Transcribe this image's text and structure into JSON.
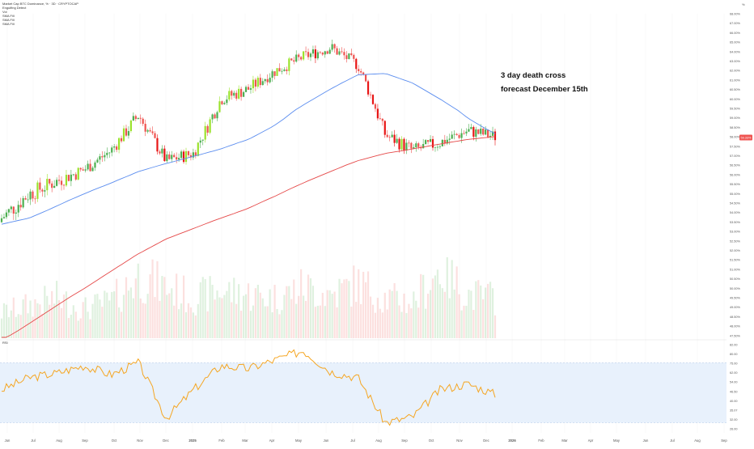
{
  "header": {
    "title": "Market Cap BTC Dominance, % · 3D · CRYPTOCAP",
    "indicators": [
      "Engulfing Detect",
      "Vol",
      "SMA Fill",
      "SMA Fill",
      "SMA Fill"
    ],
    "currency_label": "%"
  },
  "annotations": {
    "line1": "3 day death cross",
    "line2": "forecast December 15th"
  },
  "rsi_panel": {
    "label": "RSI"
  },
  "colors": {
    "bull": "#4caf50",
    "bull_bright": "#9be22d",
    "bear": "#ef5350",
    "bear_bright": "#e81515",
    "sma_fast": "#5b8def",
    "sma_slow": "#e54848",
    "rsi_line": "#f5a623",
    "rsi_band": "#e8f1fc",
    "grid": "#f2f2f2"
  },
  "chart_data": [
    {
      "type": "line",
      "title": "Market Cap BTC Dominance, % · 3D · CRYPTOCAP",
      "y_ticks": [
        "68.00%",
        "67.00%",
        "66.00%",
        "65.00%",
        "64.00%",
        "63.00%",
        "62.00%",
        "61.00%",
        "60.50%",
        "60.00%",
        "59.50%",
        "59.00%",
        "58.50%",
        "58.00%",
        "57.50%",
        "57.00%",
        "56.50%",
        "56.00%",
        "55.50%",
        "55.00%",
        "54.50%",
        "54.00%",
        "53.50%",
        "53.00%",
        "52.50%",
        "52.00%",
        "51.50%",
        "51.00%",
        "50.50%",
        "50.00%",
        "49.50%",
        "49.00%",
        "48.50%",
        "48.00%",
        "47.50%"
      ],
      "x_labels": [
        "Jun",
        "Jul",
        "Aug",
        "Sep",
        "Oct",
        "Nov",
        "Dec",
        "2025",
        "Feb",
        "Mar",
        "Apr",
        "May",
        "Jun",
        "Jul",
        "Aug",
        "Sep",
        "Oct",
        "Nov",
        "Dec",
        "2026",
        "Feb",
        "Mar",
        "Apr",
        "May",
        "Jun",
        "Jul",
        "Aug",
        "Sep"
      ],
      "last_price_label": "59.33%",
      "series": [
        {
          "kind": "candles",
          "x": [
            "Jun",
            "Jul",
            "Aug",
            "Sep",
            "Oct",
            "Nov",
            "Dec",
            "2025",
            "Feb",
            "Mar",
            "Apr",
            "May",
            "Jun",
            "Jul",
            "Aug",
            "Sep",
            "Oct",
            "Nov",
            "Dec"
          ],
          "close": [
            54.6,
            55.8,
            56.5,
            57.2,
            58.5,
            60.8,
            57.8,
            58.3,
            61.8,
            62.5,
            63.8,
            64.8,
            65.5,
            64.2,
            59.5,
            58.5,
            59.0,
            59.8,
            59.4
          ]
        },
        {
          "kind": "line",
          "x": [
            "Jun",
            "Jul",
            "Aug",
            "Sep",
            "Oct",
            "Nov",
            "Dec",
            "2025",
            "Feb",
            "Mar",
            "Apr",
            "May",
            "Jun",
            "Jul",
            "Aug",
            "Sep",
            "Oct",
            "Nov",
            "Dec"
          ],
          "values": [
            54.3,
            54.6,
            55.2,
            55.8,
            56.4,
            57.1,
            57.6,
            58.1,
            58.6,
            59.2,
            60.2,
            61.4,
            62.5,
            63.5,
            63.6,
            62.9,
            61.8,
            60.6,
            59.6
          ]
        },
        {
          "kind": "line",
          "x": [
            "Jun",
            "Jul",
            "Aug",
            "Sep",
            "Oct",
            "Nov",
            "Dec",
            "2025",
            "Feb",
            "Mar",
            "Apr",
            "May",
            "Jun",
            "Jul",
            "Aug",
            "Sep",
            "Oct",
            "Nov",
            "Dec"
          ],
          "values": [
            47.8,
            48.9,
            50.0,
            51.0,
            52.0,
            52.9,
            53.6,
            54.1,
            54.6,
            55.1,
            55.7,
            56.4,
            57.1,
            57.8,
            58.3,
            58.6,
            58.9,
            59.2,
            59.4
          ]
        }
      ]
    },
    {
      "type": "bar",
      "x": [
        "Jun",
        "Jul",
        "Aug",
        "Sep",
        "Oct",
        "Nov",
        "Dec",
        "2025",
        "Feb",
        "Mar",
        "Apr",
        "May",
        "Jun",
        "Jul",
        "Aug",
        "Sep",
        "Oct",
        "Nov",
        "Dec"
      ],
      "values": [
        0.35,
        0.45,
        0.55,
        0.4,
        0.5,
        0.85,
        0.7,
        0.55,
        0.65,
        0.6,
        0.55,
        0.7,
        0.6,
        0.75,
        0.55,
        0.5,
        0.95,
        0.6,
        0.55
      ]
    },
    {
      "type": "line",
      "title": "RSI",
      "y_ticks": [
        "82.00",
        "80.00",
        "75.00",
        "62.00",
        "54.00",
        "46.50",
        "40.00",
        "35.07",
        "32.00",
        "26.00"
      ],
      "band": [
        30,
        70
      ],
      "series": [
        {
          "x": [
            "Jun",
            "Jul",
            "Aug",
            "Sep",
            "Oct",
            "Nov",
            "Dec",
            "2025",
            "Feb",
            "Mar",
            "Apr",
            "May",
            "Jun",
            "Jul",
            "Aug",
            "Sep",
            "Oct",
            "Nov",
            "Dec"
          ],
          "values": [
            52,
            60,
            63,
            68,
            62,
            70,
            33,
            52,
            68,
            66,
            72,
            78,
            64,
            60,
            30,
            34,
            52,
            56,
            49
          ]
        }
      ]
    }
  ]
}
